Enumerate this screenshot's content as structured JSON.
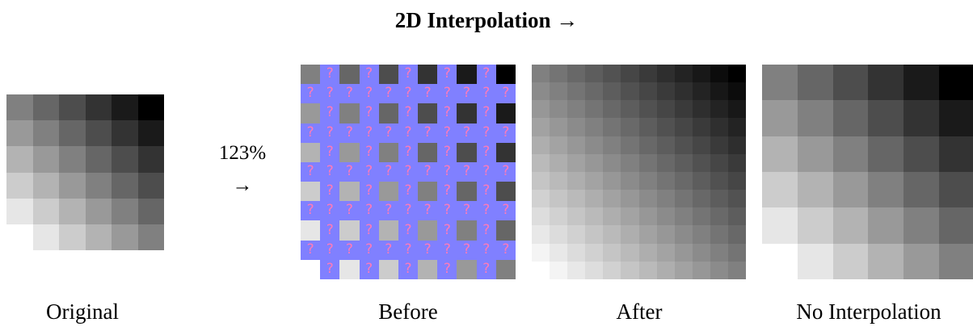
{
  "title": "2D Interpolation →",
  "zoom": {
    "percent": "123%",
    "arrow": "→"
  },
  "captions": {
    "original": "Original",
    "before": "Before",
    "after": "After",
    "no_interpolation": "No Interpolation"
  },
  "placeholder_glyph": "?",
  "colors": {
    "placeholder_bg": "#8080ff",
    "placeholder_glyph": "#ff7ab8"
  },
  "original_grid": [
    [
      "#808080",
      "#666666",
      "#4d4d4d",
      "#333333",
      "#1a1a1a",
      "#000000"
    ],
    [
      "#999999",
      "#808080",
      "#666666",
      "#4d4d4d",
      "#333333",
      "#1a1a1a"
    ],
    [
      "#b3b3b3",
      "#999999",
      "#808080",
      "#666666",
      "#4d4d4d",
      "#333333"
    ],
    [
      "#cccccc",
      "#b3b3b3",
      "#999999",
      "#808080",
      "#666666",
      "#4d4d4d"
    ],
    [
      "#e6e6e6",
      "#cccccc",
      "#b3b3b3",
      "#999999",
      "#808080",
      "#666666"
    ],
    [
      "#ffffff",
      "#e6e6e6",
      "#cccccc",
      "#b3b3b3",
      "#999999",
      "#808080"
    ]
  ]
}
